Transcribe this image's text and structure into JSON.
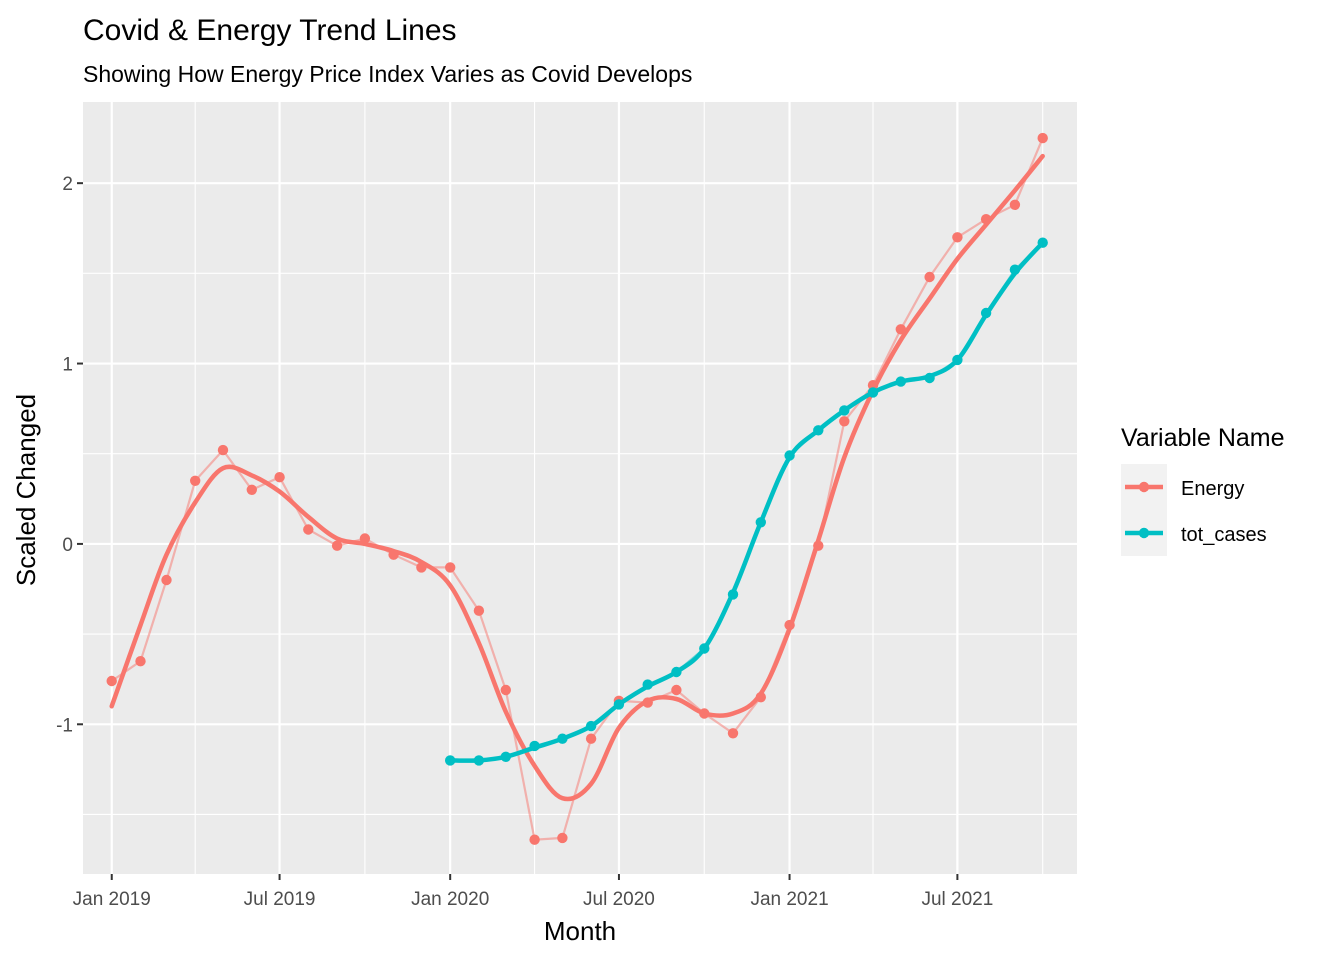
{
  "chart_data": {
    "type": "line",
    "title": "Covid & Energy Trend Lines",
    "subtitle": "Showing How Energy Price Index Varies as Covid Develops",
    "xlabel": "Month",
    "ylabel": "Scaled Changed",
    "xlim": [
      "2018-12-01",
      "2021-11-07"
    ],
    "ylim": [
      -1.83,
      2.45
    ],
    "x_ticks": [
      {
        "date": "2019-01-01",
        "label": "Jan 2019"
      },
      {
        "date": "2019-07-01",
        "label": "Jul 2019"
      },
      {
        "date": "2020-01-01",
        "label": "Jan 2020"
      },
      {
        "date": "2020-07-01",
        "label": "Jul 2020"
      },
      {
        "date": "2021-01-01",
        "label": "Jan 2021"
      },
      {
        "date": "2021-07-01",
        "label": "Jul 2021"
      }
    ],
    "x_minor_ticks": [
      "2019-04-01",
      "2019-10-01",
      "2020-04-01",
      "2020-10-01",
      "2021-04-01",
      "2021-10-01"
    ],
    "y_ticks": [
      {
        "value": -1,
        "label": "-1"
      },
      {
        "value": 0,
        "label": "0"
      },
      {
        "value": 1,
        "label": "1"
      },
      {
        "value": 2,
        "label": "2"
      }
    ],
    "y_minor_ticks": [
      -1.5,
      -0.5,
      0.5,
      1.5
    ],
    "grid": true,
    "legend": {
      "title": "Variable Name",
      "position": "right",
      "entries": [
        {
          "label": "Energy",
          "color": "#F8766D"
        },
        {
          "label": "tot_cases",
          "color": "#00BFC4"
        }
      ]
    },
    "series": [
      {
        "name": "Energy",
        "color": "#F8766D",
        "x": [
          "2019-01-01",
          "2019-02-01",
          "2019-03-01",
          "2019-04-01",
          "2019-05-01",
          "2019-06-01",
          "2019-07-01",
          "2019-08-01",
          "2019-09-01",
          "2019-10-01",
          "2019-11-01",
          "2019-12-01",
          "2020-01-01",
          "2020-02-01",
          "2020-03-01",
          "2020-04-01",
          "2020-05-01",
          "2020-06-01",
          "2020-07-01",
          "2020-08-01",
          "2020-09-01",
          "2020-10-01",
          "2020-11-01",
          "2020-12-01",
          "2021-01-01",
          "2021-02-01",
          "2021-03-01",
          "2021-04-01",
          "2021-05-01",
          "2021-06-01",
          "2021-07-01",
          "2021-08-01",
          "2021-09-01",
          "2021-10-01"
        ],
        "values": [
          -0.76,
          -0.65,
          -0.2,
          0.35,
          0.52,
          0.3,
          0.37,
          0.08,
          -0.01,
          0.03,
          -0.06,
          -0.13,
          -0.13,
          -0.37,
          -0.81,
          -1.64,
          -1.63,
          -1.08,
          -0.87,
          -0.88,
          -0.81,
          -0.94,
          -1.05,
          -0.85,
          -0.45,
          -0.01,
          0.68,
          0.88,
          1.19,
          1.48,
          1.7,
          1.8,
          1.88,
          2.25
        ],
        "trend": [
          -0.9,
          -0.45,
          -0.06,
          0.23,
          0.42,
          0.38,
          0.29,
          0.15,
          0.03,
          0.0,
          -0.04,
          -0.1,
          -0.23,
          -0.55,
          -0.93,
          -1.23,
          -1.41,
          -1.33,
          -1.02,
          -0.87,
          -0.86,
          -0.94,
          -0.94,
          -0.83,
          -0.47,
          0.02,
          0.48,
          0.85,
          1.13,
          1.36,
          1.58,
          1.77,
          1.96,
          2.15
        ]
      },
      {
        "name": "tot_cases",
        "color": "#00BFC4",
        "x": [
          "2020-01-01",
          "2020-02-01",
          "2020-03-01",
          "2020-04-01",
          "2020-05-01",
          "2020-06-01",
          "2020-07-01",
          "2020-08-01",
          "2020-09-01",
          "2020-10-01",
          "2020-11-01",
          "2020-12-01",
          "2021-01-01",
          "2021-02-01",
          "2021-03-01",
          "2021-04-01",
          "2021-05-01",
          "2021-06-01",
          "2021-07-01",
          "2021-08-01",
          "2021-09-01",
          "2021-10-01"
        ],
        "values": [
          -1.2,
          -1.2,
          -1.18,
          -1.12,
          -1.08,
          -1.01,
          -0.89,
          -0.78,
          -0.71,
          -0.58,
          -0.28,
          0.12,
          0.49,
          0.63,
          0.74,
          0.84,
          0.9,
          0.92,
          1.02,
          1.28,
          1.52,
          1.67
        ],
        "trend": [
          -1.2,
          -1.2,
          -1.18,
          -1.13,
          -1.08,
          -1.01,
          -0.89,
          -0.79,
          -0.71,
          -0.58,
          -0.27,
          0.12,
          0.48,
          0.63,
          0.74,
          0.84,
          0.9,
          0.93,
          1.02,
          1.27,
          1.5,
          1.67
        ]
      }
    ]
  }
}
